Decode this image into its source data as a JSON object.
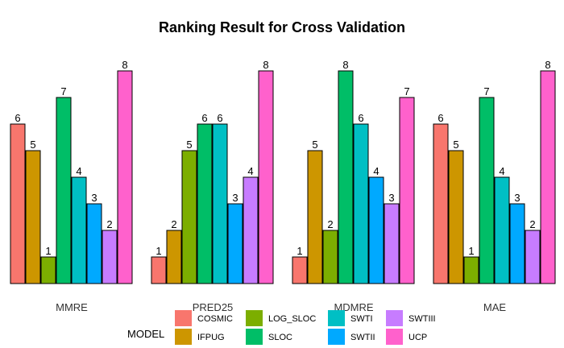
{
  "chart_data": {
    "type": "bar",
    "title": "Ranking Result for Cross Validation",
    "categories": [
      "MMRE",
      "PRED25",
      "MDMRE",
      "MAE"
    ],
    "ylim": [
      0,
      8
    ],
    "grid": false,
    "legend_title": "MODEL",
    "legend_position": "bottom",
    "series": [
      {
        "name": "COSMIC",
        "color": "#F8766D",
        "values": [
          6,
          1,
          1,
          6
        ]
      },
      {
        "name": "IFPUG",
        "color": "#CD9600",
        "values": [
          5,
          2,
          5,
          5
        ]
      },
      {
        "name": "LOG_SLOC",
        "color": "#7CAE00",
        "values": [
          1,
          5,
          2,
          1
        ]
      },
      {
        "name": "SLOC",
        "color": "#00BE67",
        "values": [
          7,
          6,
          8,
          7
        ]
      },
      {
        "name": "SWTI",
        "color": "#00BFC4",
        "values": [
          4,
          6,
          6,
          4
        ]
      },
      {
        "name": "SWTII",
        "color": "#00A9FF",
        "values": [
          3,
          3,
          4,
          3
        ]
      },
      {
        "name": "SWTIII",
        "color": "#C77CFF",
        "values": [
          2,
          4,
          3,
          2
        ]
      },
      {
        "name": "UCP",
        "color": "#FF61CC",
        "values": [
          8,
          8,
          7,
          8
        ]
      }
    ],
    "legend_order": [
      [
        "COSMIC",
        "LOG_SLOC",
        "SWTI",
        "SWTIII"
      ],
      [
        "IFPUG",
        "SLOC",
        "SWTII",
        "UCP"
      ]
    ]
  }
}
